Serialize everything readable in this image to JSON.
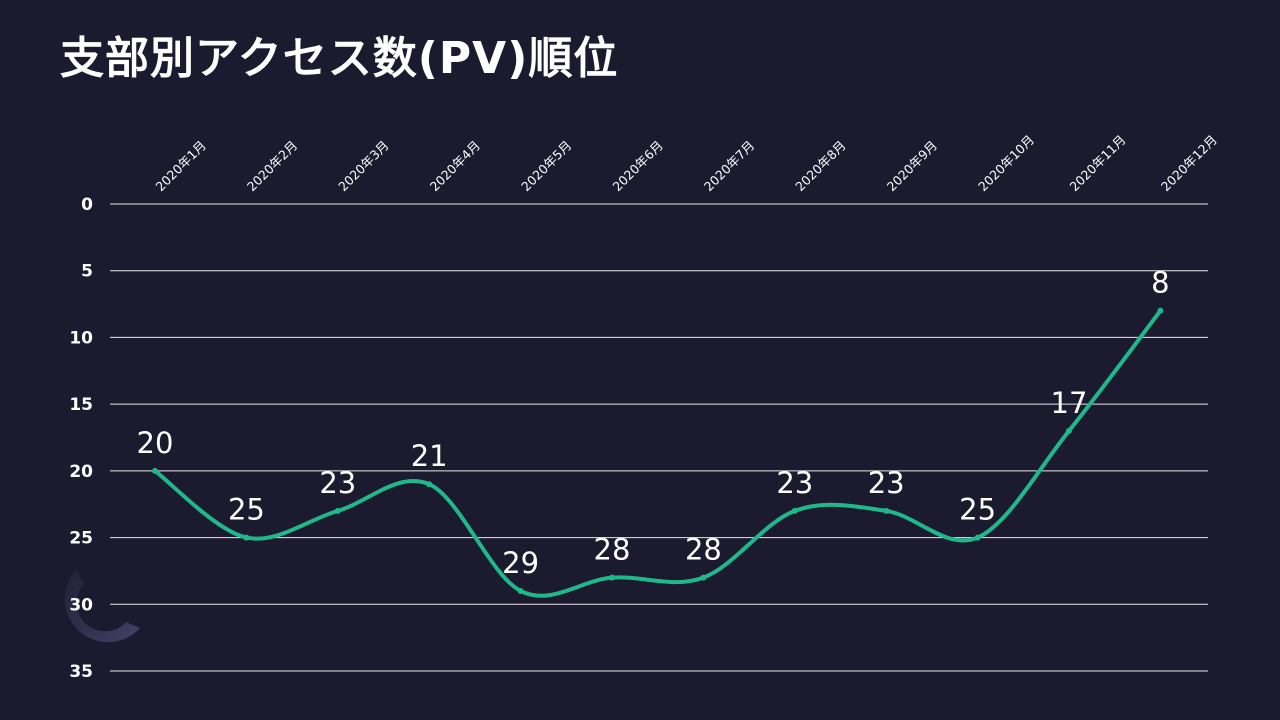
{
  "title": "支部別アクセス数(PV)順位",
  "colors": {
    "background": "#1c1a2f",
    "line": "#1fb88a",
    "grid": "#ffffff",
    "text": "#ffffff"
  },
  "chart_data": {
    "type": "line",
    "title": "支部別アクセス数(PV)順位",
    "categories": [
      "2020年1月",
      "2020年2月",
      "2020年3月",
      "2020年4月",
      "2020年5月",
      "2020年6月",
      "2020年7月",
      "2020年8月",
      "2020年9月",
      "2020年10月",
      "2020年11月",
      "2020年12月"
    ],
    "values": [
      20,
      25,
      23,
      21,
      29,
      28,
      28,
      23,
      23,
      25,
      17,
      8
    ],
    "y_axis": {
      "reversed": true,
      "min": 0,
      "max": 35,
      "ticks": [
        0,
        5,
        10,
        15,
        20,
        25,
        30,
        35
      ]
    },
    "x_axis_position": "top",
    "smooth": true,
    "grid": true,
    "data_labels": true,
    "legend": "none"
  }
}
